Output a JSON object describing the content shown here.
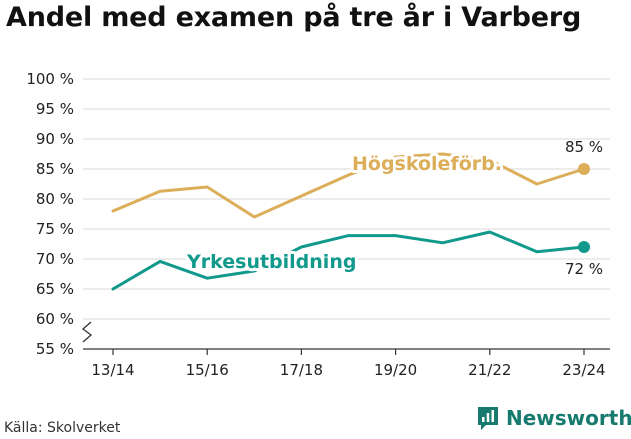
{
  "title": "Andel med examen på tre år i Varberg",
  "source": "Källa: Skolverket",
  "brand": {
    "name": "Newsworthy",
    "icon": "newsworthy-logo-icon",
    "color": "#177a6e"
  },
  "colors": {
    "hogskole": "#dcae5a",
    "yrkes": "#11998c",
    "grid": "#d9d9d9",
    "axis": "#333333"
  },
  "chart_data": {
    "type": "line",
    "title": "Andel med examen på tre år i Varberg",
    "x": [
      "13/14",
      "14/15",
      "15/16",
      "16/17",
      "17/18",
      "18/19",
      "19/20",
      "20/21",
      "21/22",
      "22/23",
      "23/24"
    ],
    "x_tick_labels": [
      "13/14",
      "15/16",
      "17/18",
      "19/20",
      "21/22",
      "23/24"
    ],
    "y_ticks": [
      {
        "value": 55,
        "label": "55 %"
      },
      {
        "value": 60,
        "label": "60 %"
      },
      {
        "value": 65,
        "label": "65 %"
      },
      {
        "value": 70,
        "label": "70 %"
      },
      {
        "value": 75,
        "label": "75 %"
      },
      {
        "value": 80,
        "label": "80 %"
      },
      {
        "value": 85,
        "label": "85 %"
      },
      {
        "value": 90,
        "label": "90 %"
      },
      {
        "value": 95,
        "label": "95 %"
      },
      {
        "value": 100,
        "label": "100 %"
      }
    ],
    "ylim": [
      55,
      100
    ],
    "y_axis_break": true,
    "grid": "horizontal",
    "series": [
      {
        "name": "Högskoleförb.",
        "color": "#dcae5a",
        "values": [
          78,
          81.3,
          82,
          77,
          80.5,
          84,
          87,
          87.5,
          86.5,
          82.5,
          85
        ],
        "end_label": "85 %"
      },
      {
        "name": "Yrkesutbildning",
        "color": "#11998c",
        "values": [
          65,
          69.6,
          66.8,
          68,
          72,
          73.9,
          73.9,
          72.7,
          74.5,
          71.2,
          72
        ],
        "end_label": "72 %"
      }
    ]
  }
}
